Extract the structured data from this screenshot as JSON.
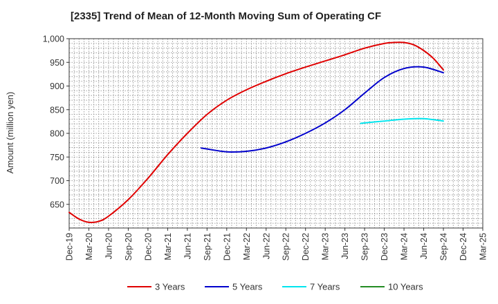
{
  "chart_data": {
    "type": "line",
    "title": "[2335]  Trend of Mean of 12-Month Moving Sum of Operating CF",
    "ylabel": "Amount (million yen)",
    "xlabel": "",
    "ylim": [
      600,
      1000
    ],
    "yticks": [
      650,
      700,
      750,
      800,
      850,
      900,
      950,
      1000
    ],
    "ytick_labels": [
      "650",
      "700",
      "750",
      "800",
      "850",
      "900",
      "950",
      "1,000"
    ],
    "categories": [
      "Dec-19",
      "Mar-20",
      "Jun-20",
      "Sep-20",
      "Dec-20",
      "Mar-21",
      "Jun-21",
      "Sep-21",
      "Dec-21",
      "Mar-22",
      "Jun-22",
      "Sep-22",
      "Dec-22",
      "Mar-23",
      "Jun-23",
      "Sep-23",
      "Dec-23",
      "Mar-24",
      "Jun-24",
      "Sep-24",
      "Dec-24",
      "Mar-25"
    ],
    "grid": true,
    "legend_position": "bottom",
    "series": [
      {
        "name": "3 Years",
        "color": "#e00000",
        "x": [
          0,
          0.5,
          1,
          1.5,
          2,
          3,
          4,
          5,
          6,
          7,
          8,
          9,
          10,
          11,
          12,
          13,
          14,
          15,
          16,
          16.5,
          17,
          17.5,
          18,
          18.5,
          19
        ],
        "values": [
          633,
          619,
          612,
          614,
          625,
          660,
          705,
          755,
          800,
          840,
          870,
          892,
          910,
          926,
          940,
          953,
          966,
          980,
          990,
          992,
          992,
          987,
          975,
          958,
          934
        ]
      },
      {
        "name": "5 Years",
        "color": "#0000cc",
        "x": [
          6.7,
          7,
          8,
          9,
          10,
          11,
          12,
          13,
          14,
          15,
          16,
          17,
          18,
          19
        ],
        "values": [
          769,
          767,
          761,
          762,
          769,
          782,
          800,
          822,
          850,
          885,
          918,
          937,
          940,
          928
        ]
      },
      {
        "name": "7 Years",
        "color": "#00e5ee",
        "x": [
          14.8,
          15,
          16,
          17,
          18,
          19
        ],
        "values": [
          821,
          822,
          826,
          830,
          831,
          826
        ]
      },
      {
        "name": "10 Years",
        "color": "#228b22",
        "x": [],
        "values": []
      }
    ]
  }
}
